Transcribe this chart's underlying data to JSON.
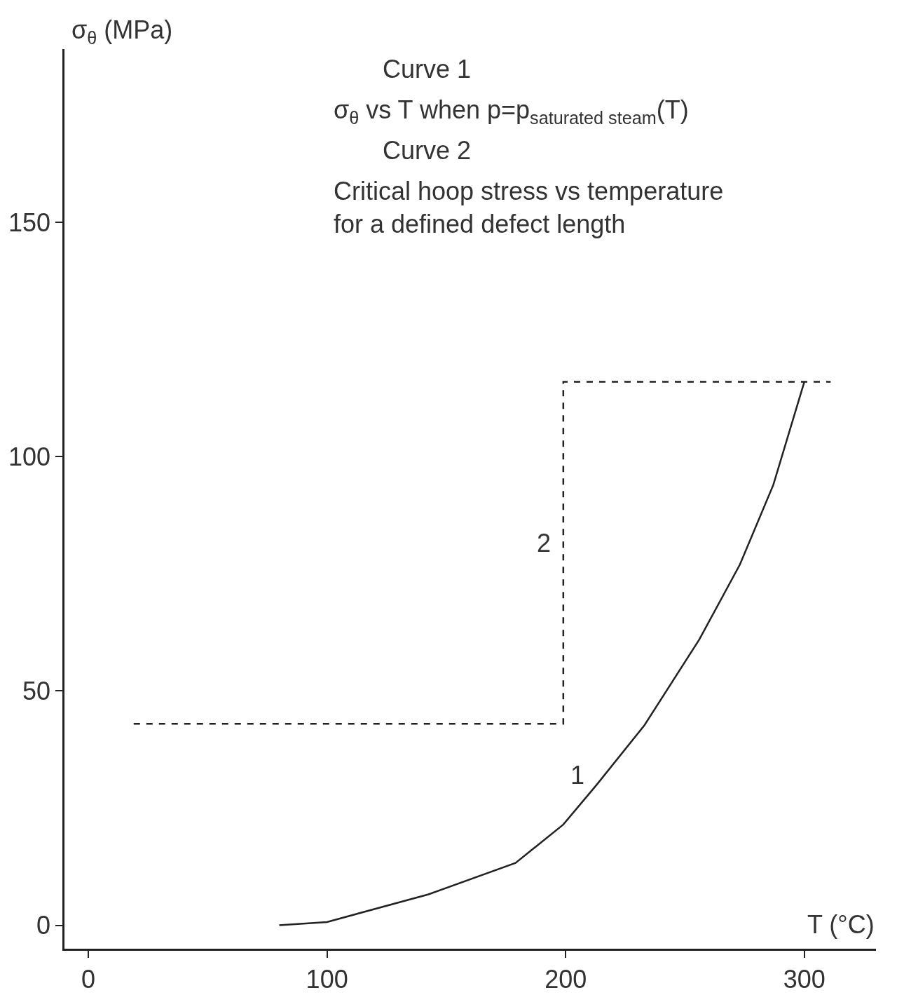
{
  "chart_data": {
    "type": "line",
    "xlabel": "T (°C)",
    "ylabel": "σ$_{θ}$ (MPa)",
    "series": [
      {
        "name": "1",
        "color": "#222222",
        "line_style": "solid",
        "x": [
          80,
          100,
          142.5,
          179,
          199,
          213,
          233,
          256,
          273,
          287,
          300
        ],
        "values": [
          0,
          0.7,
          6.6,
          13.3,
          21.5,
          30,
          42.7,
          61,
          77,
          94,
          116
        ]
      },
      {
        "name": "2",
        "color": "#222222",
        "line_style": "dashed",
        "x": [
          19,
          199,
          199,
          311
        ],
        "values": [
          43,
          43,
          116,
          116
        ]
      }
    ],
    "xlim": [
      -10,
      330
    ],
    "ylim": [
      -5,
      187
    ],
    "xticks": [
      0,
      100,
      200,
      300
    ],
    "yticks": [
      0,
      50,
      100,
      150
    ],
    "legend": false,
    "marker": "none",
    "annotations": [
      "Curve 1",
      "σ$_{θ}$ vs T when p=p$_{saturated steam}$(T)",
      "Curve 2",
      "Critical hoop stress vs temperature for a defined defect length"
    ]
  }
}
